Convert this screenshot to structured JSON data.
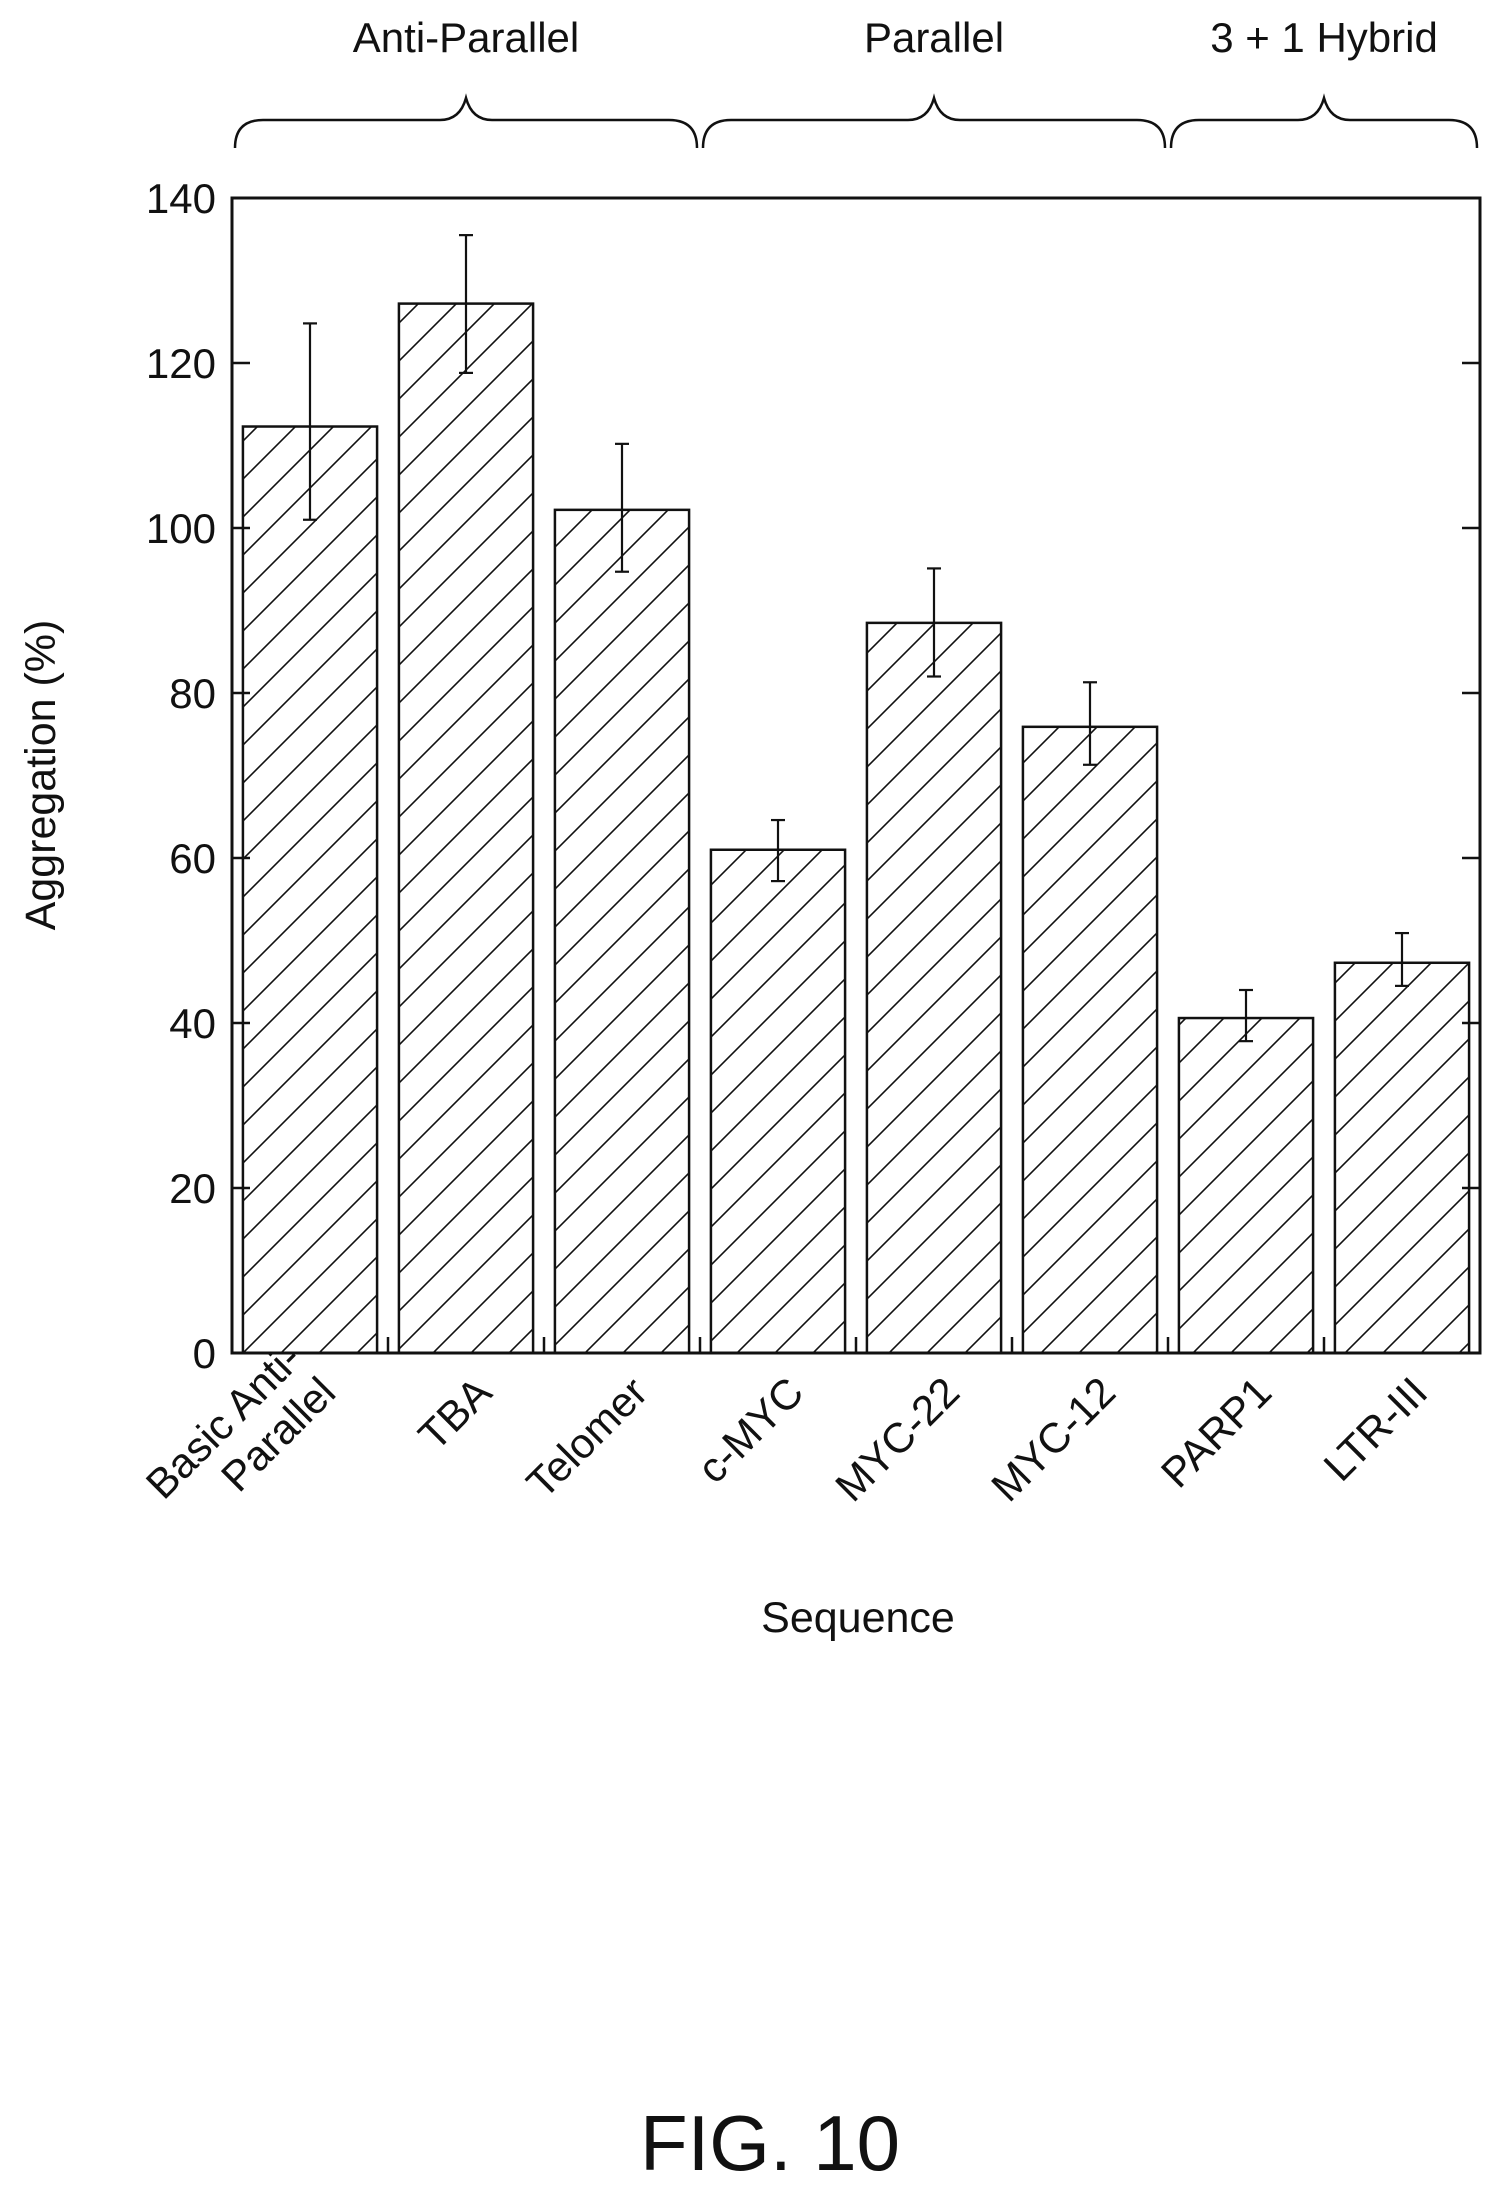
{
  "figure_label": "FIG. 10",
  "group_labels": [
    "Anti-Parallel",
    "Parallel",
    "3 + 1 Hybrid"
  ],
  "chart_data": {
    "type": "bar",
    "title": "",
    "xlabel": "Sequence",
    "ylabel": "Aggregation (%)",
    "ylim": [
      0,
      140
    ],
    "yticks": [
      0,
      20,
      40,
      60,
      80,
      100,
      120,
      140
    ],
    "categories": [
      {
        "label": "Basic Anti-\nParallel",
        "lines": [
          "Basic Anti-",
          "Parallel"
        ]
      },
      {
        "label": "TBA",
        "lines": [
          "TBA"
        ]
      },
      {
        "label": "Telomer",
        "lines": [
          "Telomer"
        ]
      },
      {
        "label": "c-MYC",
        "lines": [
          "c-MYC"
        ]
      },
      {
        "label": "MYC-22",
        "lines": [
          "MYC-22"
        ]
      },
      {
        "label": "MYC-12",
        "lines": [
          "MYC-12"
        ]
      },
      {
        "label": "PARP1",
        "lines": [
          "PARP1"
        ]
      },
      {
        "label": "LTR-III",
        "lines": [
          "LTR-III"
        ]
      }
    ],
    "values": [
      112.3,
      127.2,
      102.2,
      61.0,
      88.5,
      75.9,
      40.6,
      47.3
    ],
    "error_low": [
      101.0,
      118.8,
      94.7,
      57.2,
      82.0,
      71.3,
      37.8,
      44.5
    ],
    "error_high": [
      124.8,
      135.5,
      110.2,
      64.6,
      95.1,
      81.3,
      44.0,
      50.9
    ],
    "groups": [
      {
        "label": "Anti-Parallel",
        "start": 0,
        "end": 2
      },
      {
        "label": "Parallel",
        "start": 3,
        "end": 5
      },
      {
        "label": "3 + 1 Hybrid",
        "start": 6,
        "end": 7
      }
    ],
    "bar_fill": "hatched (diagonal)",
    "bar_color": "#111111",
    "grid": false,
    "legend": "none"
  }
}
